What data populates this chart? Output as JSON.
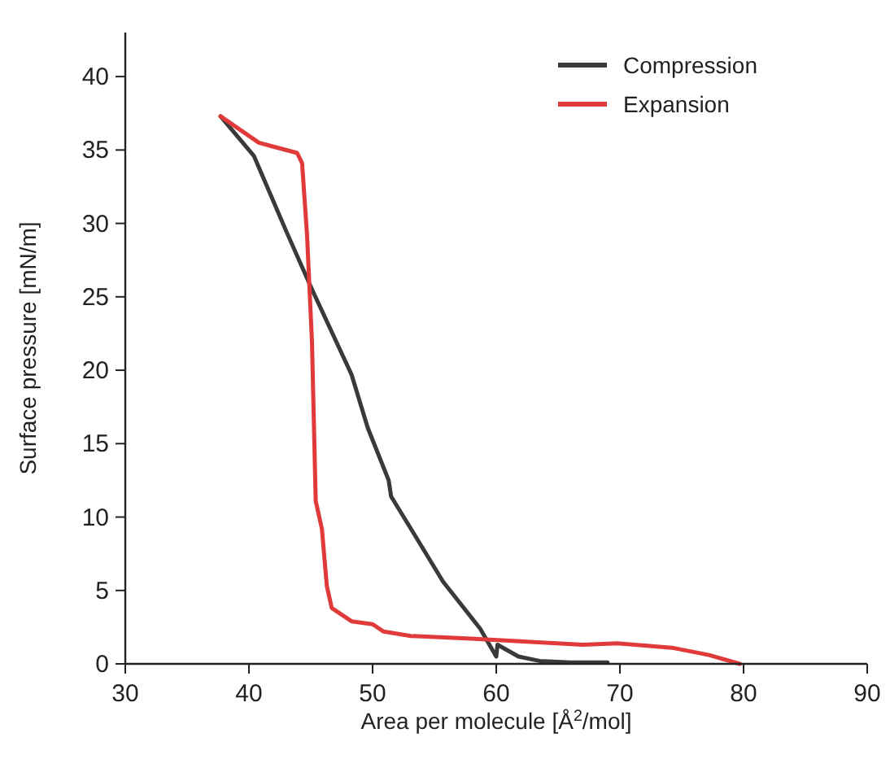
{
  "chart_data": {
    "type": "line",
    "xlabel": "Area per molecule [Å$^{2}$/mol]",
    "ylabel": "Surface pressure [mN/m]",
    "xlim": [
      30,
      90
    ],
    "ylim": [
      0,
      43
    ],
    "xticks": [
      30,
      40,
      50,
      60,
      70,
      80,
      90
    ],
    "yticks": [
      0,
      5,
      10,
      15,
      20,
      25,
      30,
      35,
      40
    ],
    "legend": "top right",
    "grid": false,
    "marker": "none",
    "line_style": "solid",
    "series": [
      {
        "name": "Compression",
        "color": "#3a3a3a",
        "x": [
          37.7,
          40.4,
          43.0,
          45.1,
          48.3,
          49.6,
          51.3,
          51.5,
          53.1,
          55.7,
          58.7,
          60.0,
          60.1,
          61.8,
          63.5,
          66,
          69
        ],
        "values": [
          37.3,
          34.6,
          29.5,
          25.5,
          19.7,
          16.1,
          12.5,
          11.4,
          9.2,
          5.6,
          2.4,
          0.5,
          1.3,
          0.5,
          0.2,
          0.1,
          0.1
        ]
      },
      {
        "name": "Expansion",
        "color": "#e03a3a",
        "x": [
          37.7,
          40.8,
          42.1,
          43.9,
          44.3,
          44.7,
          45.1,
          45.4,
          45.9,
          46.3,
          46.7,
          48.3,
          50.0,
          50.9,
          53.1,
          58.3,
          67.0,
          69.8,
          74.2,
          77.2,
          79.7
        ],
        "values": [
          37.3,
          35.5,
          35.2,
          34.8,
          34.1,
          29.2,
          21.9,
          11.1,
          9.2,
          5.3,
          3.8,
          2.9,
          2.7,
          2.2,
          1.9,
          1.7,
          1.3,
          1.4,
          1.1,
          0.6,
          0
        ]
      }
    ]
  }
}
